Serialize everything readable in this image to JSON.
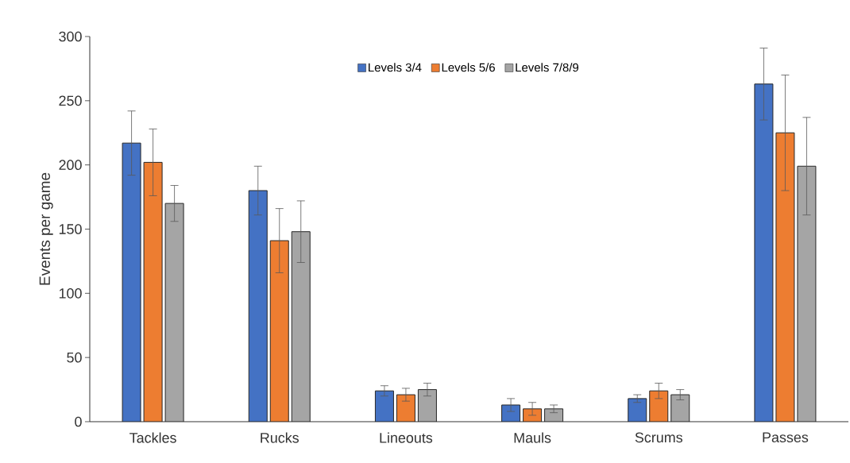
{
  "chart_data": {
    "type": "bar",
    "ylabel": "Events per game",
    "categories": [
      "Tackles",
      "Rucks",
      "Lineouts",
      "Mauls",
      "Scrums",
      "Passes"
    ],
    "series": [
      {
        "name": "Levels 3/4",
        "color": "#4472c4",
        "values": [
          217,
          180,
          24,
          13,
          18,
          263
        ],
        "errors": [
          25,
          19,
          4,
          5,
          3,
          28
        ]
      },
      {
        "name": "Levels 5/6",
        "color": "#ed7d31",
        "values": [
          202,
          141,
          21,
          10,
          24,
          225
        ],
        "errors": [
          26,
          25,
          5,
          5,
          6,
          45
        ]
      },
      {
        "name": "Levels 7/8/9",
        "color": "#a5a5a5",
        "values": [
          170,
          148,
          25,
          10,
          21,
          199
        ],
        "errors": [
          14,
          24,
          5,
          3,
          4,
          38
        ]
      }
    ],
    "ylim": [
      0,
      300
    ],
    "yticks": [
      0,
      50,
      100,
      150,
      200,
      250,
      300
    ],
    "grid": false,
    "legend": "top"
  }
}
